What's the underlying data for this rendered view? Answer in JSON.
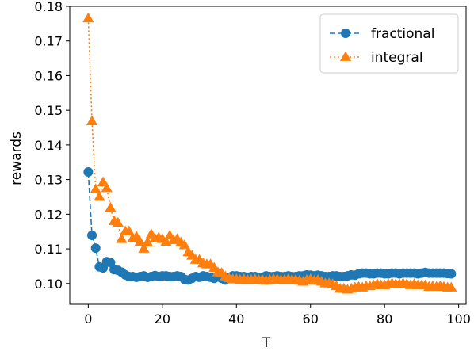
{
  "chart_data": {
    "type": "line",
    "xlabel": "T",
    "ylabel": "rewards",
    "xlim": [
      -5,
      102
    ],
    "ylim": [
      0.094,
      0.18
    ],
    "xticks": [
      0,
      20,
      40,
      60,
      80,
      100
    ],
    "yticks": [
      0.1,
      0.11,
      0.12,
      0.13,
      0.14,
      0.15,
      0.16,
      0.17,
      0.18
    ],
    "ytick_labels": [
      "0.10",
      "0.11",
      "0.12",
      "0.13",
      "0.14",
      "0.15",
      "0.16",
      "0.17",
      "0.18"
    ],
    "grid": false,
    "legend_position": "top-right",
    "series": [
      {
        "name": "fractional",
        "color": "#1f77b4",
        "linestyle": "dashed",
        "marker": "circle",
        "x": [
          0,
          1,
          2,
          3,
          4,
          5,
          6,
          7,
          8,
          9,
          10,
          11,
          12,
          13,
          14,
          15,
          16,
          17,
          18,
          19,
          20,
          21,
          22,
          23,
          24,
          25,
          26,
          27,
          28,
          29,
          30,
          31,
          32,
          33,
          34,
          35,
          36,
          37,
          38,
          39,
          40,
          41,
          42,
          43,
          44,
          45,
          46,
          47,
          48,
          49,
          50,
          51,
          52,
          53,
          54,
          55,
          56,
          57,
          58,
          59,
          60,
          61,
          62,
          63,
          64,
          65,
          66,
          67,
          68,
          69,
          70,
          71,
          72,
          73,
          74,
          75,
          76,
          77,
          78,
          79,
          80,
          81,
          82,
          83,
          84,
          85,
          86,
          87,
          88,
          89,
          90,
          91,
          92,
          93,
          94,
          95,
          96,
          97,
          98
        ],
        "y": [
          0.1322,
          0.1139,
          0.1102,
          0.1048,
          0.1045,
          0.1063,
          0.106,
          0.104,
          0.1038,
          0.1033,
          0.1025,
          0.102,
          0.102,
          0.1018,
          0.102,
          0.1022,
          0.1018,
          0.102,
          0.1023,
          0.102,
          0.1022,
          0.1022,
          0.102,
          0.102,
          0.1022,
          0.102,
          0.1012,
          0.101,
          0.1015,
          0.102,
          0.1018,
          0.1022,
          0.102,
          0.1018,
          0.1015,
          0.102,
          0.1015,
          0.101,
          0.1018,
          0.1022,
          0.1022,
          0.102,
          0.102,
          0.1018,
          0.102,
          0.102,
          0.1018,
          0.1018,
          0.1022,
          0.102,
          0.102,
          0.1022,
          0.102,
          0.102,
          0.1022,
          0.102,
          0.102,
          0.1022,
          0.1022,
          0.1025,
          0.1024,
          0.1022,
          0.1024,
          0.1022,
          0.102,
          0.102,
          0.1022,
          0.1022,
          0.102,
          0.102,
          0.1022,
          0.1025,
          0.1024,
          0.1028,
          0.103,
          0.103,
          0.1028,
          0.1028,
          0.103,
          0.103,
          0.1028,
          0.1028,
          0.103,
          0.103,
          0.1028,
          0.103,
          0.103,
          0.103,
          0.103,
          0.1028,
          0.103,
          0.1032,
          0.103,
          0.103,
          0.103,
          0.103,
          0.103,
          0.1029,
          0.1028
        ]
      },
      {
        "name": "integral",
        "color": "#ff7f0e",
        "linestyle": "dotted",
        "marker": "triangle",
        "x": [
          0,
          1,
          2,
          3,
          4,
          5,
          6,
          7,
          8,
          9,
          10,
          11,
          12,
          13,
          14,
          15,
          16,
          17,
          18,
          19,
          20,
          21,
          22,
          23,
          24,
          25,
          26,
          27,
          28,
          29,
          30,
          31,
          32,
          33,
          34,
          35,
          36,
          37,
          38,
          39,
          40,
          41,
          42,
          43,
          44,
          45,
          46,
          47,
          48,
          49,
          50,
          51,
          52,
          53,
          54,
          55,
          56,
          57,
          58,
          59,
          60,
          61,
          62,
          63,
          64,
          65,
          66,
          67,
          68,
          69,
          70,
          71,
          72,
          73,
          74,
          75,
          76,
          77,
          78,
          79,
          80,
          81,
          82,
          83,
          84,
          85,
          86,
          87,
          88,
          89,
          90,
          91,
          92,
          93,
          94,
          95,
          96,
          97,
          98
        ],
        "y": [
          0.1765,
          0.1468,
          0.1272,
          0.125,
          0.1292,
          0.1275,
          0.1218,
          0.118,
          0.1175,
          0.1128,
          0.115,
          0.115,
          0.113,
          0.1135,
          0.112,
          0.11,
          0.1118,
          0.1142,
          0.113,
          0.1132,
          0.1128,
          0.112,
          0.1138,
          0.1125,
          0.1128,
          0.1118,
          0.111,
          0.109,
          0.108,
          0.1068,
          0.1068,
          0.1058,
          0.1055,
          0.1055,
          0.1045,
          0.1032,
          0.103,
          0.102,
          0.1015,
          0.1012,
          0.1012,
          0.101,
          0.1012,
          0.101,
          0.101,
          0.1012,
          0.101,
          0.101,
          0.1008,
          0.101,
          0.1012,
          0.1012,
          0.101,
          0.101,
          0.1012,
          0.101,
          0.101,
          0.1008,
          0.1005,
          0.101,
          0.1012,
          0.1008,
          0.101,
          0.1005,
          0.1,
          0.1,
          0.0998,
          0.0992,
          0.0985,
          0.0985,
          0.0982,
          0.0985,
          0.0988,
          0.099,
          0.0988,
          0.0992,
          0.0992,
          0.0995,
          0.0998,
          0.0995,
          0.0995,
          0.0998,
          0.1,
          0.0998,
          0.0998,
          0.1,
          0.0998,
          0.0995,
          0.0998,
          0.0995,
          0.0995,
          0.0995,
          0.099,
          0.0992,
          0.099,
          0.0992,
          0.099,
          0.0988,
          0.0988
        ]
      }
    ]
  }
}
